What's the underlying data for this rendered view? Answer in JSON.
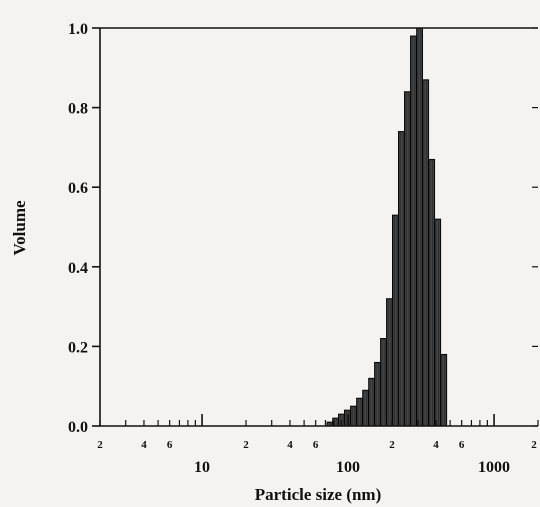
{
  "chart_data": {
    "type": "bar",
    "xlabel": "Particle size (nm)",
    "ylabel": "Volume",
    "x_scale": "log",
    "xlim": [
      2,
      2000
    ],
    "ylim": [
      0,
      1.0
    ],
    "y_ticks": [
      "0.0",
      "0.2",
      "0.4",
      "0.6",
      "0.8",
      "1.0"
    ],
    "x_major_ticks": [
      {
        "value": 10,
        "label": "10"
      },
      {
        "value": 100,
        "label": "100"
      },
      {
        "value": 1000,
        "label": "1000"
      }
    ],
    "x_minor_labeled": [
      {
        "value": 2,
        "label": "2"
      },
      {
        "value": 4,
        "label": "4"
      },
      {
        "value": 6,
        "label": "6"
      },
      {
        "value": 20,
        "label": "2"
      },
      {
        "value": 40,
        "label": "4"
      },
      {
        "value": 60,
        "label": "6"
      },
      {
        "value": 200,
        "label": "2"
      },
      {
        "value": 400,
        "label": "4"
      },
      {
        "value": 600,
        "label": "6"
      },
      {
        "value": 2000,
        "label": "2"
      }
    ],
    "bars": [
      {
        "x": 75,
        "y": 0.01
      },
      {
        "x": 82,
        "y": 0.02
      },
      {
        "x": 90,
        "y": 0.03
      },
      {
        "x": 99,
        "y": 0.04
      },
      {
        "x": 109,
        "y": 0.05
      },
      {
        "x": 120,
        "y": 0.07
      },
      {
        "x": 132,
        "y": 0.09
      },
      {
        "x": 145,
        "y": 0.12
      },
      {
        "x": 159,
        "y": 0.16
      },
      {
        "x": 175,
        "y": 0.22
      },
      {
        "x": 192,
        "y": 0.32
      },
      {
        "x": 211,
        "y": 0.53
      },
      {
        "x": 232,
        "y": 0.74
      },
      {
        "x": 255,
        "y": 0.84
      },
      {
        "x": 281,
        "y": 0.98
      },
      {
        "x": 309,
        "y": 1.0
      },
      {
        "x": 340,
        "y": 0.87
      },
      {
        "x": 374,
        "y": 0.67
      },
      {
        "x": 411,
        "y": 0.52
      },
      {
        "x": 452,
        "y": 0.18
      }
    ],
    "bar_color": "#2b2b2b",
    "grid": false
  }
}
